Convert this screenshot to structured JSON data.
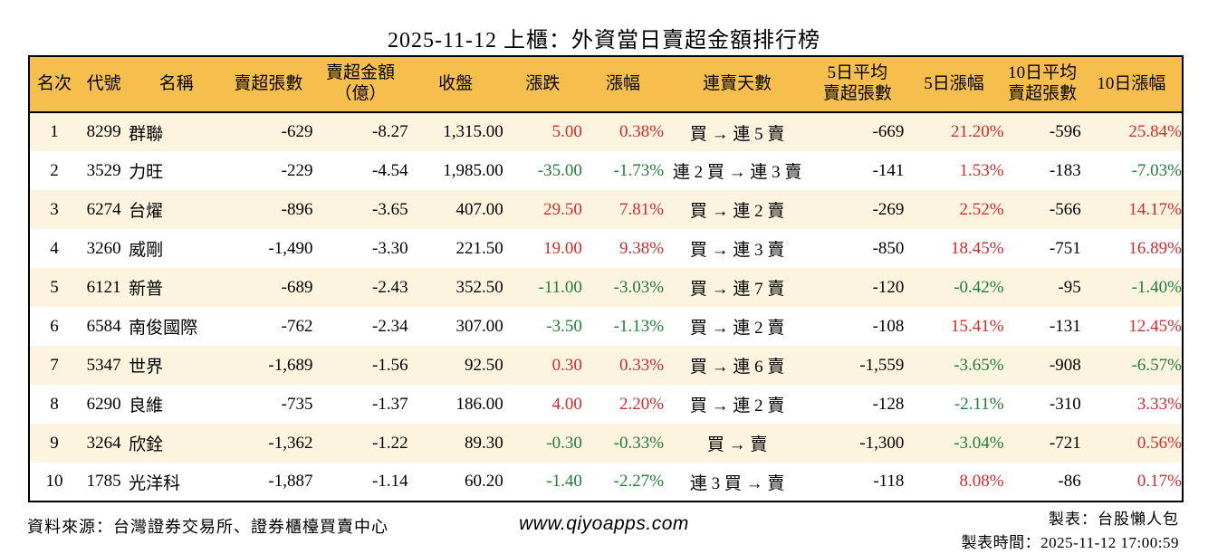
{
  "colors": {
    "up_red": "#d22b2b",
    "down_green": "#1f7e38",
    "header_bg": "#f6be4d",
    "stripe_bg": "#fdf4df"
  },
  "chart_data": {
    "type": "table",
    "title": "2025-11-12 上櫃：外資當日賣超金額排行榜",
    "columns": [
      {
        "key": "rank",
        "label": "名次",
        "align": "center",
        "colored": false
      },
      {
        "key": "code",
        "label": "代號",
        "align": "center",
        "colored": false
      },
      {
        "key": "name",
        "label": "名稱",
        "align": "left",
        "colored": false
      },
      {
        "key": "sell_volume",
        "label": "賣超張數",
        "align": "right",
        "colored": false
      },
      {
        "key": "sell_amount",
        "label": "賣超金額\n（億）",
        "align": "right",
        "colored": false
      },
      {
        "key": "close",
        "label": "收盤",
        "align": "right",
        "colored": false
      },
      {
        "key": "change",
        "label": "漲跌",
        "align": "right",
        "colored": true
      },
      {
        "key": "change_pct",
        "label": "漲幅",
        "align": "right",
        "colored": true
      },
      {
        "key": "streak",
        "label": "連賣天數",
        "align": "center",
        "colored": false
      },
      {
        "key": "avg5_volume",
        "label": "5日平均\n賣超張數",
        "align": "right",
        "colored": false
      },
      {
        "key": "pct5",
        "label": "5日漲幅",
        "align": "right",
        "colored": true
      },
      {
        "key": "avg10_volume",
        "label": "10日平均\n賣超張數",
        "align": "right",
        "colored": false
      },
      {
        "key": "pct10",
        "label": "10日漲幅",
        "align": "right",
        "colored": true
      }
    ],
    "rows": [
      [
        "1",
        "8299",
        "群聯",
        "-629",
        "-8.27",
        "1,315.00",
        "5.00",
        "0.38%",
        "買 → 連 5 賣",
        "-669",
        "21.20%",
        "-596",
        "25.84%"
      ],
      [
        "2",
        "3529",
        "力旺",
        "-229",
        "-4.54",
        "1,985.00",
        "-35.00",
        "-1.73%",
        "連 2 買 → 連 3 賣",
        "-141",
        "1.53%",
        "-183",
        "-7.03%"
      ],
      [
        "3",
        "6274",
        "台燿",
        "-896",
        "-3.65",
        "407.00",
        "29.50",
        "7.81%",
        "買 → 連 2 賣",
        "-269",
        "2.52%",
        "-566",
        "14.17%"
      ],
      [
        "4",
        "3260",
        "威剛",
        "-1,490",
        "-3.30",
        "221.50",
        "19.00",
        "9.38%",
        "買 → 連 3 賣",
        "-850",
        "18.45%",
        "-751",
        "16.89%"
      ],
      [
        "5",
        "6121",
        "新普",
        "-689",
        "-2.43",
        "352.50",
        "-11.00",
        "-3.03%",
        "買 → 連 7 賣",
        "-120",
        "-0.42%",
        "-95",
        "-1.40%"
      ],
      [
        "6",
        "6584",
        "南俊國際",
        "-762",
        "-2.34",
        "307.00",
        "-3.50",
        "-1.13%",
        "買 → 連 2 賣",
        "-108",
        "15.41%",
        "-131",
        "12.45%"
      ],
      [
        "7",
        "5347",
        "世界",
        "-1,689",
        "-1.56",
        "92.50",
        "0.30",
        "0.33%",
        "買 → 連 6 賣",
        "-1,559",
        "-3.65%",
        "-908",
        "-6.57%"
      ],
      [
        "8",
        "6290",
        "良維",
        "-735",
        "-1.37",
        "186.00",
        "4.00",
        "2.20%",
        "買 → 連 2 賣",
        "-128",
        "-2.11%",
        "-310",
        "3.33%"
      ],
      [
        "9",
        "3264",
        "欣銓",
        "-1,362",
        "-1.22",
        "89.30",
        "-0.30",
        "-0.33%",
        "買 → 賣",
        "-1,300",
        "-3.04%",
        "-721",
        "0.56%"
      ],
      [
        "10",
        "1785",
        "光洋科",
        "-1,887",
        "-1.14",
        "60.20",
        "-1.40",
        "-2.27%",
        "連 3 買 → 賣",
        "-118",
        "8.08%",
        "-86",
        "0.17%"
      ]
    ]
  },
  "footer": {
    "source": "資料來源：台灣證券交易所、證券櫃檯買賣中心",
    "website": "www.qiyoapps.com",
    "author": "製表：台股懶人包",
    "generated": "製表時間：2025-11-12 17:00:59"
  }
}
